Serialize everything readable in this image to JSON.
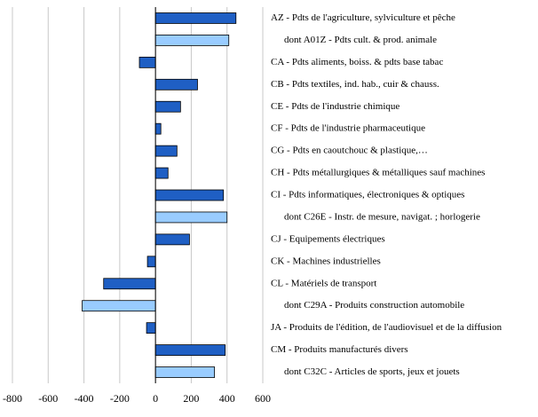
{
  "chart_data": {
    "type": "barh",
    "categories": [
      "AZ - Pdts de l'agriculture, sylviculture et pêche",
      "dont A01Z - Pdts cult. & prod. animale",
      "CA - Pdts aliments, boiss. & pdts base tabac",
      "CB - Pdts textiles, ind. hab., cuir & chauss.",
      "CE - Pdts de l'industrie chimique",
      "CF - Pdts de l'industrie pharmaceutique",
      "CG - Pdts en caoutchouc & plastique,…",
      "CH - Pdts métallurgiques & métalliques sauf machines",
      "CI - Pdts informatiques, électroniques & optiques",
      "dont C26E - Instr. de mesure, navigat. ; horlogerie",
      "CJ - Equipements électriques",
      "CK - Machines industrielles",
      "CL - Matériels de transport",
      "dont C29A - Produits construction automobile",
      "JA - Produits de l'édition, de l'audiovisuel et de la diffusion",
      "CM - Produits manufacturés divers",
      "dont C32C - Articles de sports, jeux et jouets"
    ],
    "values": [
      450,
      410,
      -90,
      235,
      140,
      30,
      120,
      70,
      380,
      400,
      190,
      -45,
      -290,
      -410,
      -50,
      390,
      330
    ],
    "colors": [
      "#1f5fc4",
      "#99ccff",
      "#1f5fc4",
      "#1f5fc4",
      "#1f5fc4",
      "#1f5fc4",
      "#1f5fc4",
      "#1f5fc4",
      "#1f5fc4",
      "#99ccff",
      "#1f5fc4",
      "#1f5fc4",
      "#1f5fc4",
      "#99ccff",
      "#1f5fc4",
      "#1f5fc4",
      "#99ccff"
    ],
    "xlim": [
      -800,
      600
    ],
    "xticks": [
      -800,
      -600,
      -400,
      -200,
      0,
      200,
      400,
      600
    ],
    "grid": true
  }
}
